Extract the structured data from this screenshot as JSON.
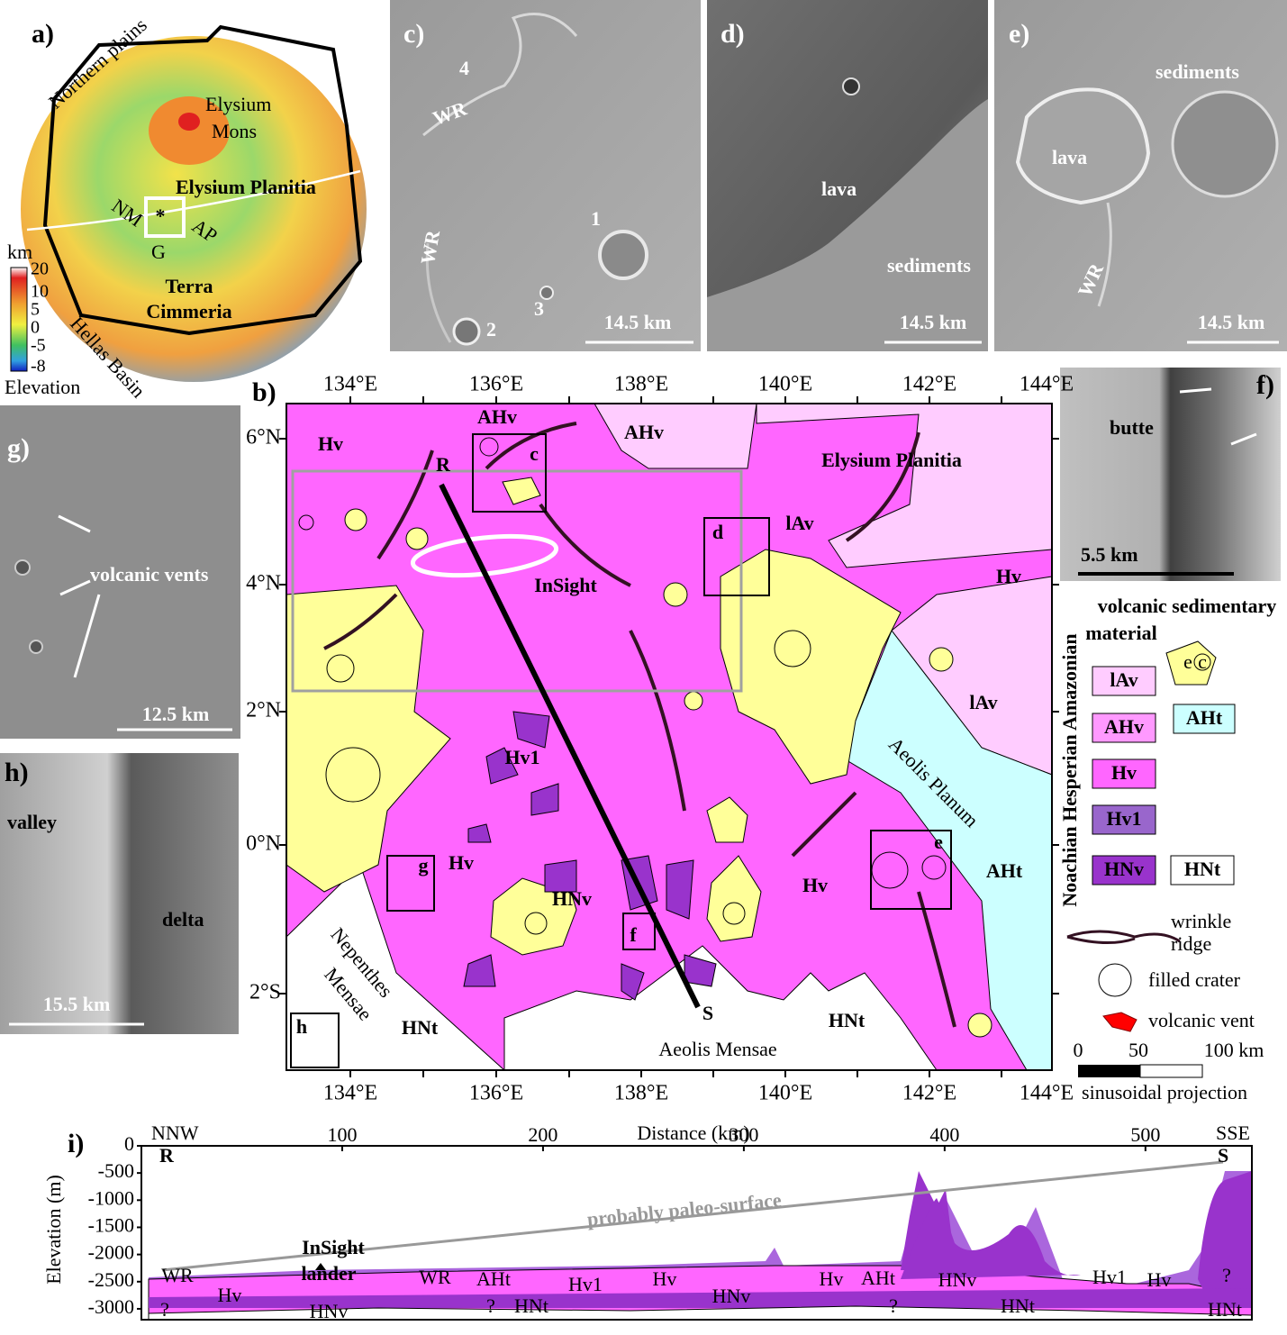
{
  "panel_a": {
    "label": "a)",
    "northern_plains": "Northern plains",
    "elysium_mons": [
      "Elysium",
      "Mons"
    ],
    "elysium_planitia": "Elysium Planitia",
    "nm": "NM",
    "ap": "AP",
    "star": "*",
    "g": "G",
    "terra_cimmeria": [
      "Terra",
      "Cimmeria"
    ],
    "hellas_basin": "Hellas Basin",
    "colorbar": {
      "unit": "km",
      "ticks": [
        20,
        10,
        5,
        0,
        -5,
        -8
      ],
      "title": "Elevation"
    }
  },
  "panel_c": {
    "label": "c)",
    "craters": [
      "4",
      "1",
      "2",
      "3"
    ],
    "wr": [
      "WR",
      "WR"
    ],
    "scale": "14.5 km"
  },
  "panel_d": {
    "label": "d)",
    "lava": "lava",
    "sediments": "sediments",
    "scale": "14.5 km"
  },
  "panel_e": {
    "label": "e)",
    "sediments": "sediments",
    "lava": "lava",
    "wr": "WR",
    "scale": "14.5 km"
  },
  "panel_f": {
    "label": "f)",
    "butte": "butte",
    "scale": "5.5 km"
  },
  "panel_g": {
    "label": "g)",
    "vents": "volcanic vents",
    "scale": "12.5 km"
  },
  "panel_h": {
    "label": "h)",
    "valley": "valley",
    "delta": "delta",
    "scale": "15.5 km"
  },
  "panel_b": {
    "label": "b)",
    "lon_ticks": [
      "134°E",
      "136°E",
      "138°E",
      "140°E",
      "142°E",
      "144°E"
    ],
    "lat_ticks": [
      "6°N",
      "4°N",
      "2°N",
      "0°N",
      "2°S"
    ],
    "units": [
      "Hv",
      "AHv",
      "AHv",
      "lAv",
      "Hv",
      "lAv",
      "Hv1",
      "AHt",
      "Hv",
      "Hv",
      "HNv",
      "HNt",
      "HNt"
    ],
    "boxes": [
      "c",
      "d",
      "e",
      "f",
      "g",
      "h"
    ],
    "ends": [
      "R",
      "S"
    ],
    "places": [
      "Elysium Planitia",
      "InSight",
      "Aeolis Planum",
      "Nepenthes",
      "Mensae",
      "Aeolis Mensae"
    ]
  },
  "legend": {
    "ages": "Noachian Hesperian Amazonian",
    "header": [
      "volcanic sedimentary",
      "material"
    ],
    "units": [
      "lAv",
      "AHv",
      "Hv",
      "Hv1",
      "HNv",
      "AHt",
      "HNt"
    ],
    "icon": [
      "e",
      "c"
    ],
    "wrinkle_ridge": [
      "wrinkle",
      "ridge"
    ],
    "filled_crater": "filled crater",
    "volcanic_vent": "volcanic vent",
    "scale": [
      "0",
      "50",
      "100 km"
    ],
    "projection": "sinusoidal projection"
  },
  "panel_i": {
    "label": "i)",
    "left_dir": "NNW",
    "right_dir": "SSE",
    "xlabel": "Distance (km)",
    "ylabel": "Elevation (m)",
    "xlim": [
      0,
      553
    ],
    "ylim": [
      -3200,
      0
    ],
    "xticks": [
      100,
      200,
      300,
      400,
      500
    ],
    "yticks": [
      0,
      -500,
      -1000,
      -1500,
      -2000,
      -2500,
      -3000
    ],
    "ends": [
      "R",
      "S"
    ],
    "paleo": "probably paleo-surface",
    "lander": [
      "InSight",
      "lander"
    ],
    "units": [
      "WR",
      "Hv",
      "?",
      "HNv",
      "WR",
      "AHt",
      "?",
      "HNt",
      "Hv1",
      "Hv",
      "HNv",
      "Hv",
      "AHt",
      "HNv",
      "?",
      "HNt",
      "Hv1",
      "Hv",
      "?",
      "HNt"
    ]
  }
}
